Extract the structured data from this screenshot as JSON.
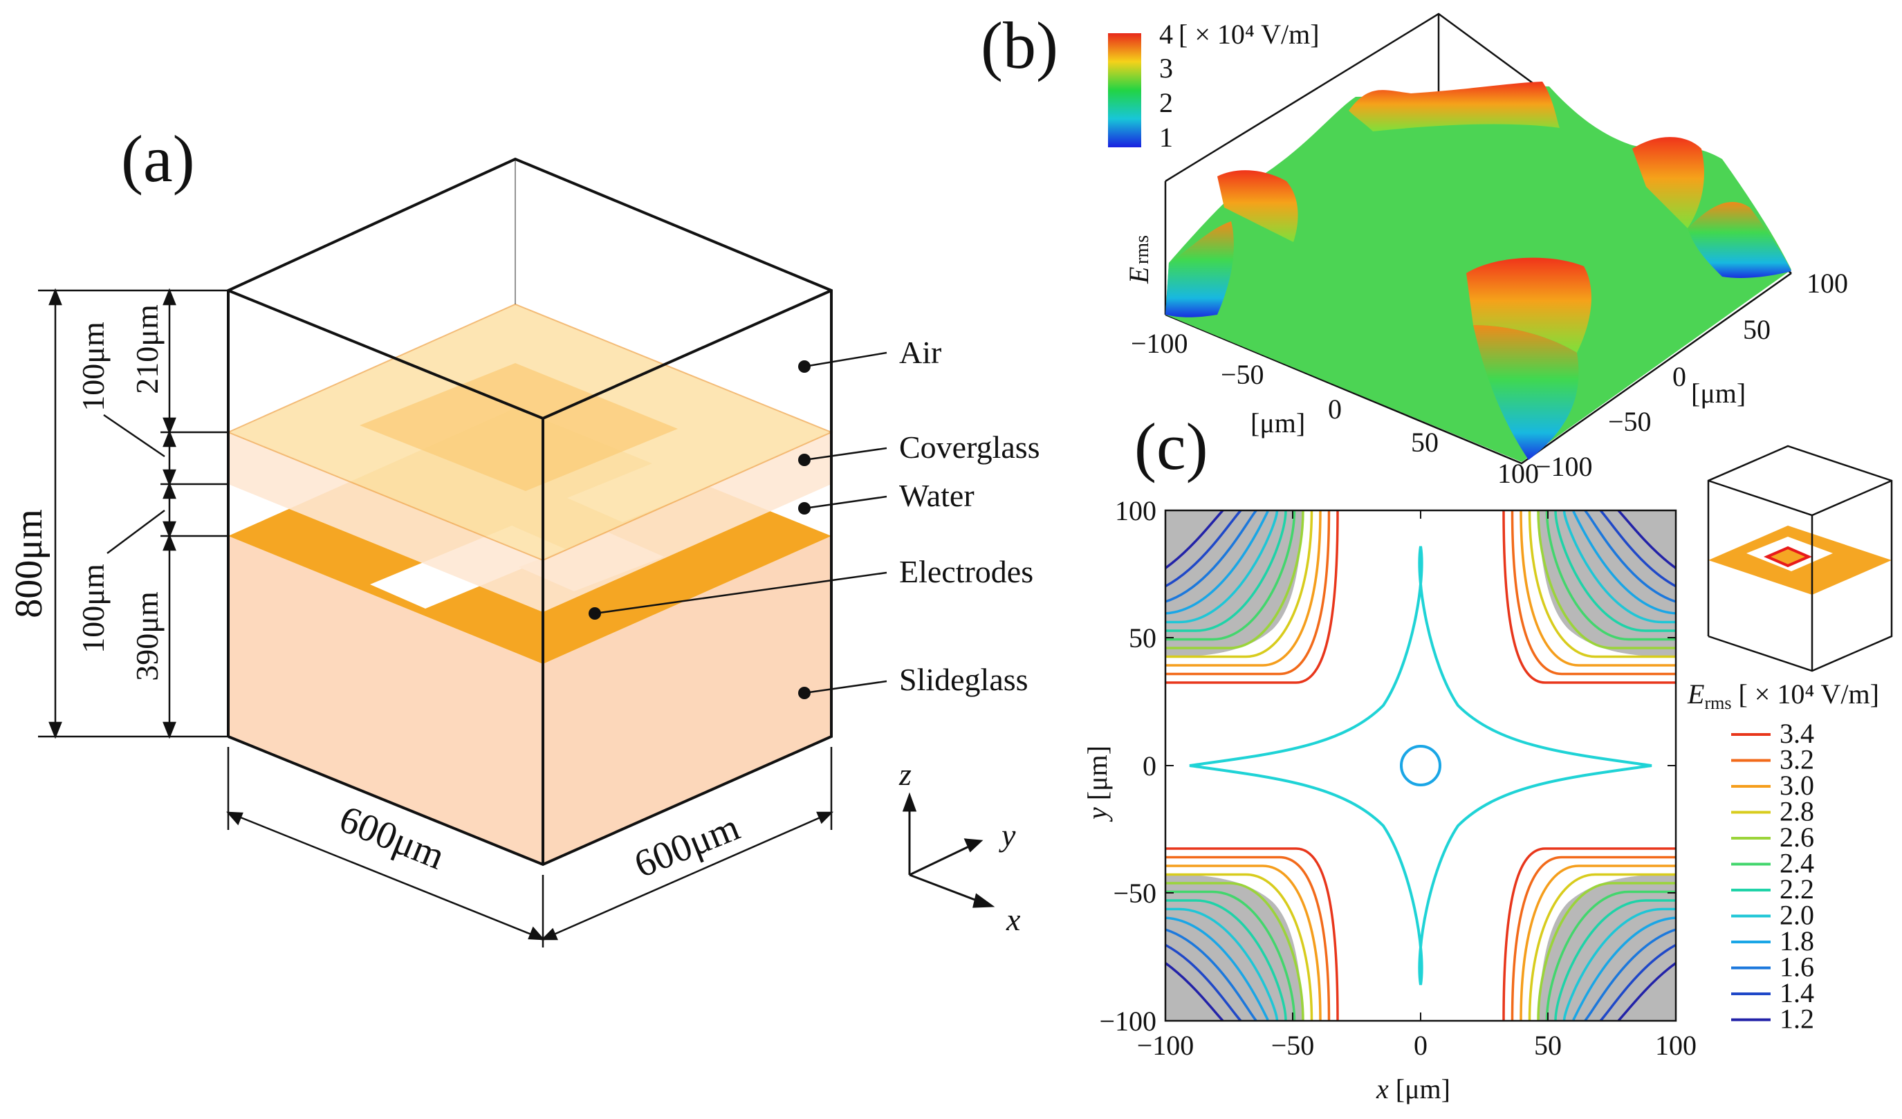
{
  "panel_a": {
    "label": "(a)",
    "layers": [
      "Air",
      "Coverglass",
      "Water",
      "Electrodes",
      "Slideglass"
    ],
    "dims": {
      "height_total": "800μm",
      "air": "210μm",
      "coverglass": "100μm",
      "water": "100μm",
      "slideglass": "390μm",
      "width_x": "600μm",
      "width_y": "600μm"
    },
    "axes": {
      "z": "z",
      "y": "y",
      "x": "x"
    }
  },
  "panel_b": {
    "label": "(b)",
    "colorbar_unit": "[ × 10⁴ V/m]",
    "colorbar_ticks": [
      "4",
      "3",
      "2",
      "1"
    ],
    "zlabel_main": "E",
    "zlabel_sub": "rms",
    "x_ticks": [
      "−100",
      "−50",
      "0",
      "50",
      "100"
    ],
    "x_unit": "[μm]",
    "y_ticks": [
      "100",
      "50",
      "0",
      "−50",
      "−100"
    ],
    "y_unit": "[μm]"
  },
  "panel_c": {
    "label": "(c)",
    "x_ticks": [
      "−100",
      "−50",
      "0",
      "50",
      "100"
    ],
    "y_ticks": [
      "100",
      "50",
      "0",
      "−50",
      "−100"
    ],
    "xlabel_var": "x",
    "xlabel_unit": " [μm]",
    "ylabel_var": "y",
    "ylabel_unit": " [μm]",
    "legend_title_main": "E",
    "legend_title_sub": "rms",
    "legend_title_unit": " [ × 10⁴ V/m]"
  },
  "chart_data": {
    "type": "contour",
    "title": "(c)",
    "xlabel": "x [μm]",
    "ylabel": "y [μm]",
    "xlim": [
      -100,
      100
    ],
    "ylim": [
      -100,
      100
    ],
    "levels": [
      {
        "value": "3.4",
        "color": "#e8361b"
      },
      {
        "value": "3.2",
        "color": "#f26a1a"
      },
      {
        "value": "3.0",
        "color": "#f59e1c"
      },
      {
        "value": "2.8",
        "color": "#d8cc1d"
      },
      {
        "value": "2.6",
        "color": "#9bd43a"
      },
      {
        "value": "2.4",
        "color": "#43d66d"
      },
      {
        "value": "2.2",
        "color": "#1fd3a8"
      },
      {
        "value": "2.0",
        "color": "#1fc6d6"
      },
      {
        "value": "1.8",
        "color": "#1aa6e6"
      },
      {
        "value": "1.6",
        "color": "#1c78dc"
      },
      {
        "value": "1.4",
        "color": "#1f48c8"
      },
      {
        "value": "1.2",
        "color": "#2222a8"
      }
    ]
  }
}
